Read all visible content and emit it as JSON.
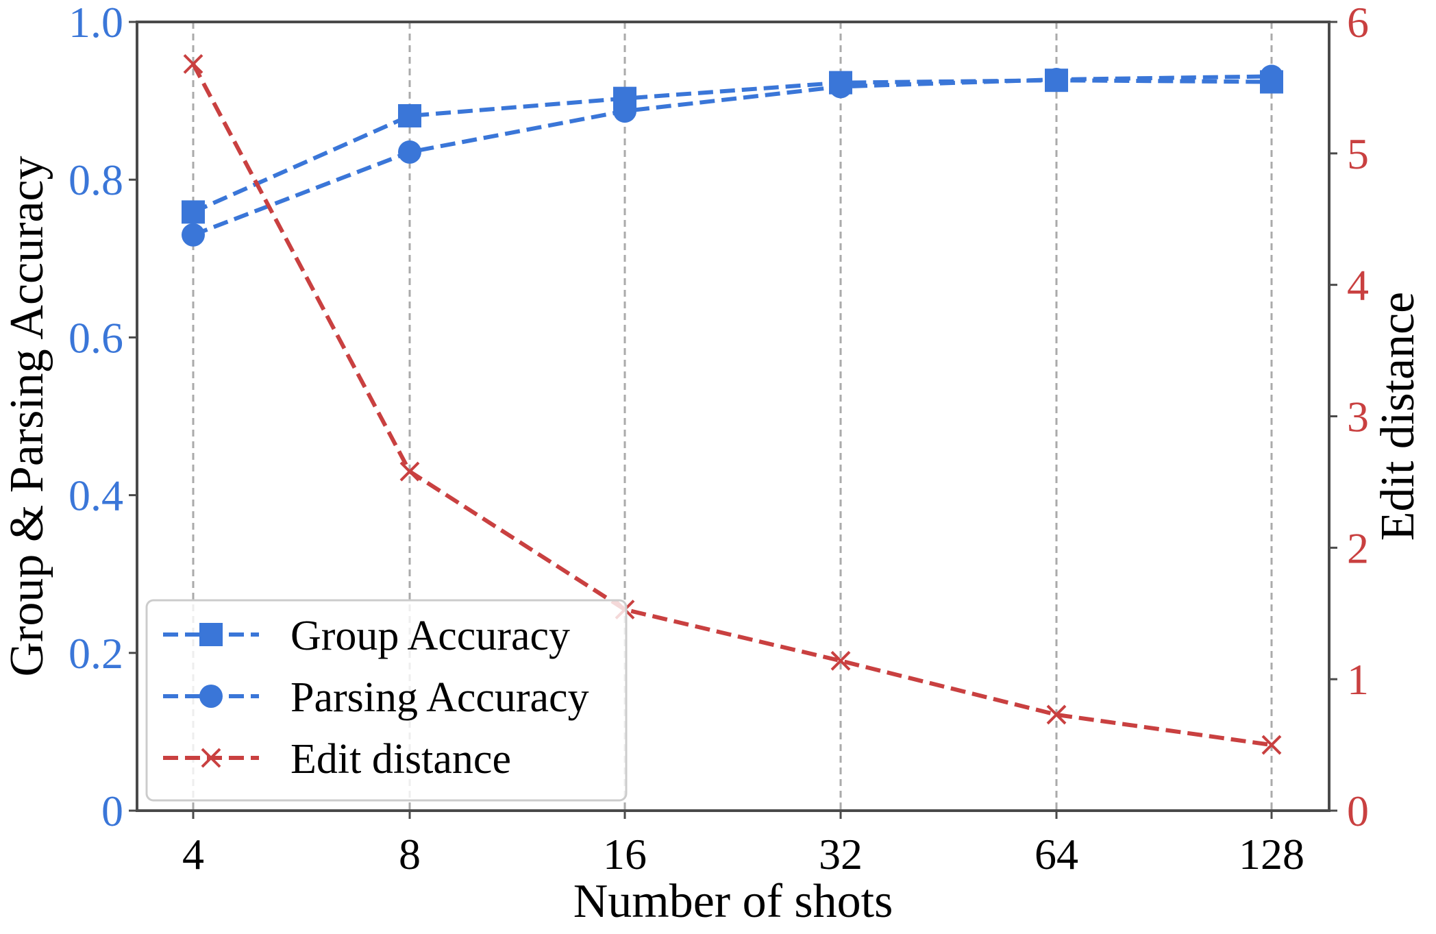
{
  "chart_data": {
    "type": "line",
    "title": "",
    "xlabel": "Number of shots",
    "ylabel_left": "Group & Parsing Accuracy",
    "ylabel_right": "Edit distance",
    "categories": [
      "4",
      "8",
      "16",
      "32",
      "64",
      "128"
    ],
    "ylim_left": [
      0,
      1.0
    ],
    "ylim_right": [
      0,
      6
    ],
    "yticks_left": [
      {
        "value": 0,
        "label": "0"
      },
      {
        "value": 0.2,
        "label": "0.2"
      },
      {
        "value": 0.4,
        "label": "0.4"
      },
      {
        "value": 0.6,
        "label": "0.6"
      },
      {
        "value": 0.8,
        "label": "0.8"
      },
      {
        "value": 1.0,
        "label": "1.0"
      }
    ],
    "yticks_right": [
      {
        "value": 0,
        "label": "0"
      },
      {
        "value": 1,
        "label": "1"
      },
      {
        "value": 2,
        "label": "2"
      },
      {
        "value": 3,
        "label": "3"
      },
      {
        "value": 4,
        "label": "4"
      },
      {
        "value": 5,
        "label": "5"
      },
      {
        "value": 6,
        "label": "6"
      }
    ],
    "grid": "vertical dashed",
    "legend_position": "bottom-left",
    "series": [
      {
        "name": "Group Accuracy",
        "axis": "left",
        "marker": "square",
        "color": "#3a76d8",
        "values": [
          0.759,
          0.881,
          0.903,
          0.923,
          0.926,
          0.924
        ]
      },
      {
        "name": "Parsing Accuracy",
        "axis": "left",
        "marker": "circle",
        "color": "#3a76d8",
        "values": [
          0.73,
          0.835,
          0.887,
          0.918,
          0.927,
          0.931
        ]
      },
      {
        "name": "Edit distance",
        "axis": "right",
        "marker": "x",
        "color": "#c94040",
        "values": [
          5.68,
          2.58,
          1.53,
          1.14,
          0.73,
          0.5
        ]
      }
    ]
  }
}
